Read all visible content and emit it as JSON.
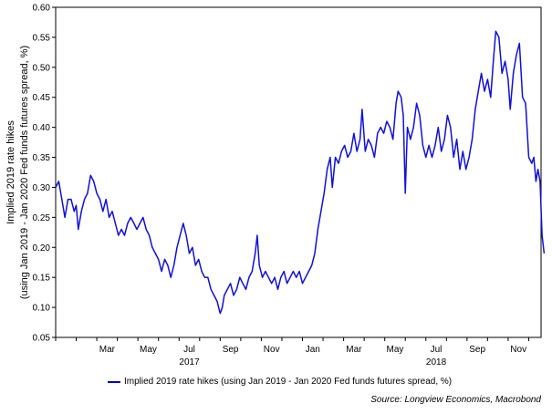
{
  "chart_data": {
    "type": "line",
    "title": "",
    "ylabel_lines": [
      "Implied 2019 rate hikes",
      "(using Jan 2019  - Jan 2020 Fed funds futures spread, %)"
    ],
    "xlabel": "",
    "ylim": [
      0.05,
      0.6
    ],
    "y_ticks": [
      "0.05",
      "0.10",
      "0.15",
      "0.20",
      "0.25",
      "0.30",
      "0.35",
      "0.40",
      "0.45",
      "0.50",
      "0.55",
      "0.60"
    ],
    "x_range": [
      1,
      24.6
    ],
    "x_ticks": [
      {
        "m": 3,
        "label": "Mar"
      },
      {
        "m": 5,
        "label": "May"
      },
      {
        "m": 7,
        "label": "Jul"
      },
      {
        "m": 9,
        "label": "Sep"
      },
      {
        "m": 11,
        "label": "Nov"
      },
      {
        "m": 13,
        "label": "Jan"
      },
      {
        "m": 15,
        "label": "Mar"
      },
      {
        "m": 17,
        "label": "May"
      },
      {
        "m": 19,
        "label": "Jul"
      },
      {
        "m": 21,
        "label": "Sep"
      },
      {
        "m": 23,
        "label": "Nov"
      }
    ],
    "year_labels": [
      {
        "m": 7,
        "label": "2017"
      },
      {
        "m": 19,
        "label": "2018"
      }
    ],
    "series": [
      {
        "name": "Implied 2019 rate hikes (using Jan 2019 - Jan 2020 Fed funds futures spread, %)",
        "color": "#1010dd",
        "points": [
          [
            1.0,
            0.3
          ],
          [
            1.15,
            0.31
          ],
          [
            1.3,
            0.28
          ],
          [
            1.45,
            0.25
          ],
          [
            1.6,
            0.28
          ],
          [
            1.75,
            0.28
          ],
          [
            1.9,
            0.26
          ],
          [
            2.0,
            0.27
          ],
          [
            2.1,
            0.23
          ],
          [
            2.25,
            0.26
          ],
          [
            2.4,
            0.28
          ],
          [
            2.55,
            0.29
          ],
          [
            2.7,
            0.32
          ],
          [
            2.85,
            0.31
          ],
          [
            3.0,
            0.29
          ],
          [
            3.15,
            0.28
          ],
          [
            3.3,
            0.26
          ],
          [
            3.45,
            0.28
          ],
          [
            3.6,
            0.25
          ],
          [
            3.75,
            0.26
          ],
          [
            3.9,
            0.24
          ],
          [
            4.05,
            0.22
          ],
          [
            4.2,
            0.23
          ],
          [
            4.35,
            0.22
          ],
          [
            4.5,
            0.24
          ],
          [
            4.65,
            0.25
          ],
          [
            4.8,
            0.24
          ],
          [
            4.95,
            0.23
          ],
          [
            5.1,
            0.24
          ],
          [
            5.25,
            0.25
          ],
          [
            5.4,
            0.23
          ],
          [
            5.55,
            0.22
          ],
          [
            5.7,
            0.2
          ],
          [
            5.85,
            0.19
          ],
          [
            6.0,
            0.18
          ],
          [
            6.15,
            0.16
          ],
          [
            6.3,
            0.18
          ],
          [
            6.45,
            0.17
          ],
          [
            6.6,
            0.15
          ],
          [
            6.75,
            0.17
          ],
          [
            6.9,
            0.2
          ],
          [
            7.05,
            0.22
          ],
          [
            7.2,
            0.24
          ],
          [
            7.35,
            0.22
          ],
          [
            7.5,
            0.19
          ],
          [
            7.65,
            0.2
          ],
          [
            7.8,
            0.17
          ],
          [
            7.95,
            0.18
          ],
          [
            8.1,
            0.16
          ],
          [
            8.25,
            0.15
          ],
          [
            8.4,
            0.15
          ],
          [
            8.55,
            0.13
          ],
          [
            8.7,
            0.12
          ],
          [
            8.85,
            0.11
          ],
          [
            9.0,
            0.09
          ],
          [
            9.1,
            0.1
          ],
          [
            9.2,
            0.12
          ],
          [
            9.35,
            0.13
          ],
          [
            9.5,
            0.14
          ],
          [
            9.65,
            0.12
          ],
          [
            9.8,
            0.13
          ],
          [
            9.95,
            0.15
          ],
          [
            10.1,
            0.14
          ],
          [
            10.25,
            0.13
          ],
          [
            10.4,
            0.15
          ],
          [
            10.55,
            0.16
          ],
          [
            10.7,
            0.19
          ],
          [
            10.8,
            0.22
          ],
          [
            10.9,
            0.17
          ],
          [
            11.05,
            0.15
          ],
          [
            11.2,
            0.16
          ],
          [
            11.35,
            0.15
          ],
          [
            11.5,
            0.14
          ],
          [
            11.65,
            0.15
          ],
          [
            11.8,
            0.13
          ],
          [
            11.95,
            0.15
          ],
          [
            12.1,
            0.16
          ],
          [
            12.25,
            0.14
          ],
          [
            12.4,
            0.15
          ],
          [
            12.55,
            0.16
          ],
          [
            12.7,
            0.15
          ],
          [
            12.85,
            0.16
          ],
          [
            13.0,
            0.14
          ],
          [
            13.15,
            0.15
          ],
          [
            13.3,
            0.16
          ],
          [
            13.45,
            0.17
          ],
          [
            13.6,
            0.19
          ],
          [
            13.75,
            0.23
          ],
          [
            13.9,
            0.26
          ],
          [
            14.05,
            0.29
          ],
          [
            14.2,
            0.33
          ],
          [
            14.35,
            0.35
          ],
          [
            14.45,
            0.3
          ],
          [
            14.6,
            0.35
          ],
          [
            14.75,
            0.34
          ],
          [
            14.9,
            0.36
          ],
          [
            15.05,
            0.37
          ],
          [
            15.2,
            0.35
          ],
          [
            15.35,
            0.36
          ],
          [
            15.5,
            0.39
          ],
          [
            15.65,
            0.36
          ],
          [
            15.8,
            0.38
          ],
          [
            15.9,
            0.43
          ],
          [
            16.05,
            0.36
          ],
          [
            16.2,
            0.38
          ],
          [
            16.35,
            0.37
          ],
          [
            16.5,
            0.35
          ],
          [
            16.65,
            0.39
          ],
          [
            16.8,
            0.4
          ],
          [
            16.95,
            0.39
          ],
          [
            17.1,
            0.41
          ],
          [
            17.25,
            0.4
          ],
          [
            17.4,
            0.38
          ],
          [
            17.55,
            0.44
          ],
          [
            17.65,
            0.46
          ],
          [
            17.8,
            0.45
          ],
          [
            17.9,
            0.42
          ],
          [
            18.0,
            0.29
          ],
          [
            18.1,
            0.4
          ],
          [
            18.25,
            0.38
          ],
          [
            18.4,
            0.4
          ],
          [
            18.55,
            0.44
          ],
          [
            18.7,
            0.42
          ],
          [
            18.85,
            0.37
          ],
          [
            19.0,
            0.35
          ],
          [
            19.15,
            0.37
          ],
          [
            19.3,
            0.35
          ],
          [
            19.45,
            0.37
          ],
          [
            19.6,
            0.4
          ],
          [
            19.75,
            0.36
          ],
          [
            19.9,
            0.38
          ],
          [
            20.05,
            0.42
          ],
          [
            20.2,
            0.4
          ],
          [
            20.35,
            0.35
          ],
          [
            20.5,
            0.38
          ],
          [
            20.65,
            0.33
          ],
          [
            20.8,
            0.36
          ],
          [
            20.95,
            0.33
          ],
          [
            21.1,
            0.35
          ],
          [
            21.25,
            0.38
          ],
          [
            21.4,
            0.43
          ],
          [
            21.55,
            0.46
          ],
          [
            21.7,
            0.49
          ],
          [
            21.85,
            0.46
          ],
          [
            22.0,
            0.48
          ],
          [
            22.15,
            0.45
          ],
          [
            22.3,
            0.52
          ],
          [
            22.4,
            0.56
          ],
          [
            22.55,
            0.55
          ],
          [
            22.7,
            0.49
          ],
          [
            22.85,
            0.51
          ],
          [
            23.0,
            0.48
          ],
          [
            23.1,
            0.43
          ],
          [
            23.25,
            0.49
          ],
          [
            23.4,
            0.52
          ],
          [
            23.55,
            0.54
          ],
          [
            23.7,
            0.45
          ],
          [
            23.85,
            0.44
          ],
          [
            24.0,
            0.35
          ],
          [
            24.15,
            0.34
          ],
          [
            24.25,
            0.35
          ],
          [
            24.35,
            0.31
          ],
          [
            24.45,
            0.33
          ],
          [
            24.55,
            0.31
          ],
          [
            24.65,
            0.22
          ],
          [
            24.75,
            0.19
          ]
        ]
      }
    ],
    "legend_label": "Implied 2019 rate hikes (using Jan 2019 - Jan 2020 Fed funds futures spread, %)",
    "source": "Source: Longview Economics, Macrobond"
  }
}
